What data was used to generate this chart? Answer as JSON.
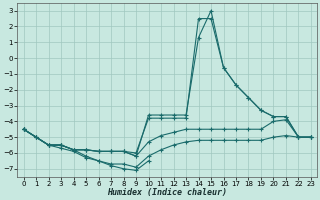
{
  "xlabel": "Humidex (Indice chaleur)",
  "xlim": [
    -0.5,
    23.5
  ],
  "ylim": [
    -7.5,
    3.5
  ],
  "yticks": [
    -7,
    -6,
    -5,
    -4,
    -3,
    -2,
    -1,
    0,
    1,
    2,
    3
  ],
  "xticks": [
    0,
    1,
    2,
    3,
    4,
    5,
    6,
    7,
    8,
    9,
    10,
    11,
    12,
    13,
    14,
    15,
    16,
    17,
    18,
    19,
    20,
    21,
    22,
    23
  ],
  "bg_color": "#c8e8e0",
  "grid_color": "#a0c8c0",
  "line_color": "#1a6b6b",
  "lines": [
    {
      "x": [
        0,
        1,
        2,
        3,
        4,
        5,
        6,
        7,
        8,
        9,
        10,
        11,
        12,
        13,
        14,
        15,
        16,
        17,
        18,
        19,
        20,
        21,
        22,
        23
      ],
      "y": [
        -4.5,
        -5.0,
        -5.5,
        -5.5,
        -5.8,
        -5.8,
        -5.9,
        -5.9,
        -5.9,
        -6.2,
        -3.6,
        -3.6,
        -3.6,
        -3.6,
        1.3,
        3.0,
        -0.6,
        -1.7,
        -2.5,
        -3.3,
        -3.7,
        -3.7,
        -5.0,
        -5.0
      ]
    },
    {
      "x": [
        0,
        1,
        2,
        3,
        4,
        5,
        6,
        7,
        8,
        9,
        10,
        11,
        12,
        13,
        14,
        15,
        16,
        17,
        18,
        19,
        20,
        21,
        22,
        23
      ],
      "y": [
        -4.5,
        -5.0,
        -5.5,
        -5.5,
        -5.8,
        -5.8,
        -5.9,
        -5.9,
        -5.9,
        -6.0,
        -3.8,
        -3.8,
        -3.8,
        -3.8,
        2.5,
        2.5,
        -0.6,
        -1.7,
        -2.5,
        -3.3,
        -3.7,
        -3.7,
        -5.0,
        -5.0
      ]
    },
    {
      "x": [
        0,
        1,
        2,
        3,
        4,
        5,
        6,
        7,
        8,
        9,
        10,
        11,
        12,
        13,
        14,
        15,
        16,
        17,
        18,
        19,
        20,
        21,
        22,
        23
      ],
      "y": [
        -4.5,
        -5.0,
        -5.5,
        -5.5,
        -5.8,
        -5.8,
        -5.9,
        -5.9,
        -5.9,
        -6.2,
        -5.3,
        -4.9,
        -4.7,
        -4.5,
        -4.5,
        -4.5,
        -4.5,
        -4.5,
        -4.5,
        -4.5,
        -4.0,
        -3.9,
        -5.0,
        -5.0
      ]
    },
    {
      "x": [
        0,
        1,
        2,
        3,
        4,
        5,
        6,
        7,
        8,
        9,
        10,
        11,
        12,
        13,
        14,
        15,
        16,
        17,
        18,
        19,
        20,
        21,
        22,
        23
      ],
      "y": [
        -4.5,
        -5.0,
        -5.5,
        -5.5,
        -5.8,
        -6.2,
        -6.5,
        -6.7,
        -6.7,
        -6.9,
        -6.2,
        -5.8,
        -5.5,
        -5.3,
        -5.2,
        -5.2,
        -5.2,
        -5.2,
        -5.2,
        -5.2,
        -5.0,
        -4.9,
        -5.0,
        -5.0
      ]
    },
    {
      "x": [
        0,
        2,
        3,
        4,
        5,
        6,
        7,
        8,
        9,
        10
      ],
      "y": [
        -4.5,
        -5.5,
        -5.7,
        -5.9,
        -6.3,
        -6.5,
        -6.8,
        -7.0,
        -7.1,
        -6.5
      ]
    }
  ]
}
